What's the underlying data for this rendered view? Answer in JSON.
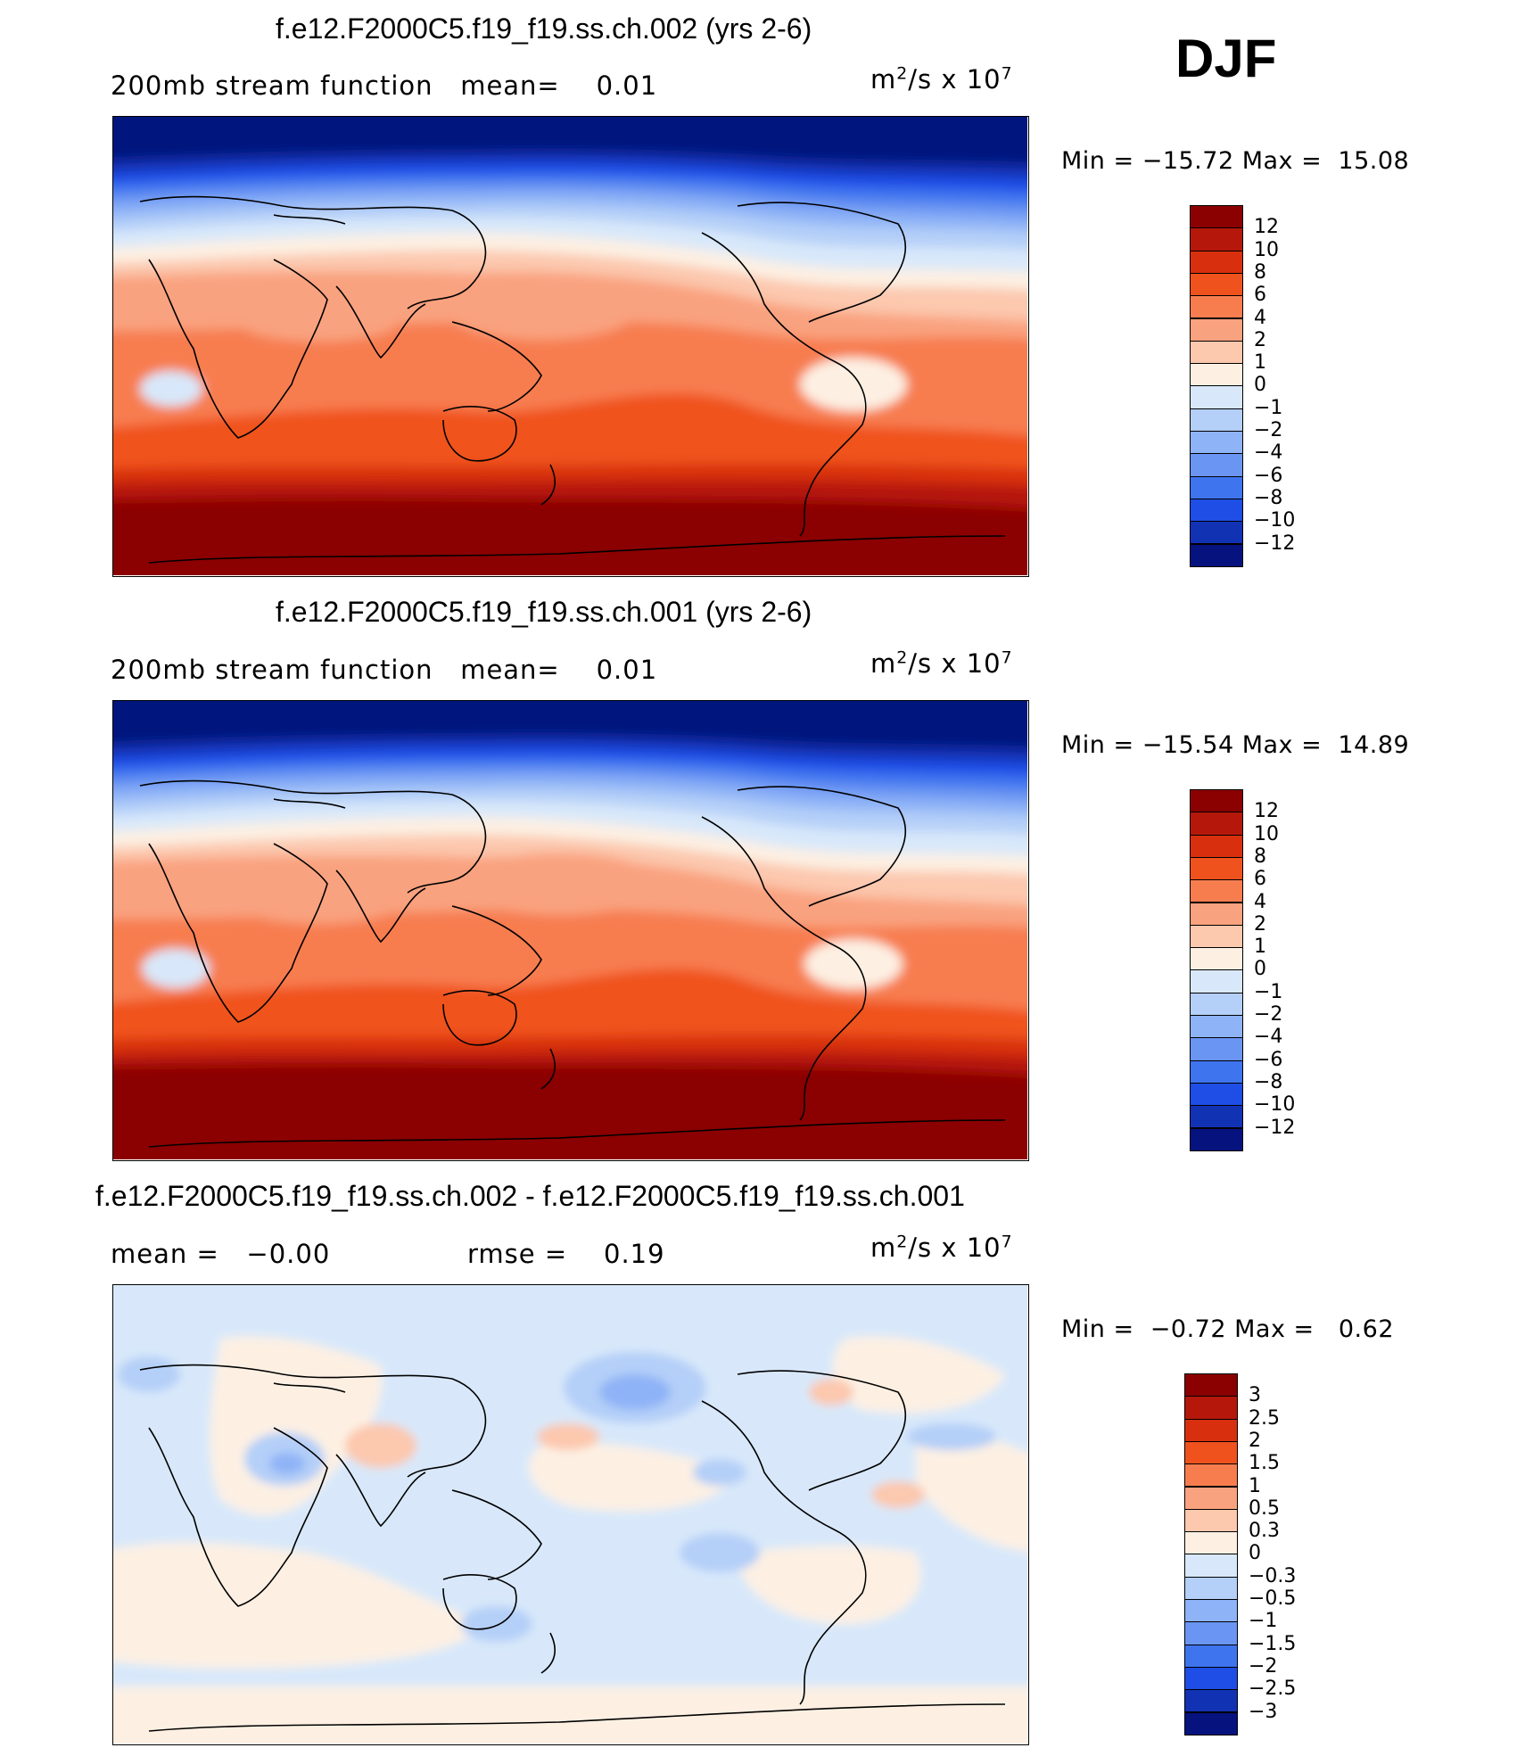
{
  "header": {
    "season": "DJF"
  },
  "panels": [
    {
      "title": "f.e12.F2000C5.f19_f19.ss.ch.002 (yrs 2-6)",
      "left_text": "200mb stream function   mean=    0.01",
      "units_base": "m",
      "units_mid": "/s x 10",
      "units_exp1": "2",
      "units_exp2": "7",
      "minmax": "Min = −15.72 Max =  15.08",
      "colorbar": {
        "levels": [
          "12",
          "10",
          "8",
          "6",
          "4",
          "2",
          "1",
          "0",
          "−1",
          "−2",
          "−4",
          "−6",
          "−8",
          "−10",
          "−12"
        ],
        "colors": [
          "#8b0000",
          "#b5180b",
          "#d8300f",
          "#f0521e",
          "#f77d4f",
          "#f9a27f",
          "#fcc8ae",
          "#fdf0e3",
          "#d8e8fa",
          "#b4cff8",
          "#8fb3f7",
          "#6a95f3",
          "#3f74ef",
          "#1f4ee6",
          "#1232b4",
          "#06127e"
        ]
      }
    },
    {
      "title": "f.e12.F2000C5.f19_f19.ss.ch.001 (yrs 2-6)",
      "left_text": "200mb stream function   mean=    0.01",
      "units_base": "m",
      "units_mid": "/s x 10",
      "units_exp1": "2",
      "units_exp2": "7",
      "minmax": "Min = −15.54 Max =  14.89",
      "colorbar": {
        "levels": [
          "12",
          "10",
          "8",
          "6",
          "4",
          "2",
          "1",
          "0",
          "−1",
          "−2",
          "−4",
          "−6",
          "−8",
          "−10",
          "−12"
        ],
        "colors": [
          "#8b0000",
          "#b5180b",
          "#d8300f",
          "#f0521e",
          "#f77d4f",
          "#f9a27f",
          "#fcc8ae",
          "#fdf0e3",
          "#d8e8fa",
          "#b4cff8",
          "#8fb3f7",
          "#6a95f3",
          "#3f74ef",
          "#1f4ee6",
          "#1232b4",
          "#06127e"
        ]
      }
    },
    {
      "title": "f.e12.F2000C5.f19_f19.ss.ch.002 - f.e12.F2000C5.f19_f19.ss.ch.001",
      "left_text": "mean =   −0.00",
      "mid_text": "rmse =    0.19",
      "units_base": "m",
      "units_mid": "/s x 10",
      "units_exp1": "2",
      "units_exp2": "7",
      "minmax": "Min =  −0.72 Max =   0.62",
      "colorbar": {
        "levels": [
          "3",
          "2.5",
          "2",
          "1.5",
          "1",
          "0.5",
          "0.3",
          "0",
          "−0.3",
          "−0.5",
          "−1",
          "−1.5",
          "−2",
          "−2.5",
          "−3"
        ],
        "colors": [
          "#8b0000",
          "#b5180b",
          "#d8300f",
          "#f0521e",
          "#f77d4f",
          "#f9a27f",
          "#fcc8ae",
          "#fdf0e3",
          "#d8e8fa",
          "#b4cff8",
          "#8fb3f7",
          "#6a95f3",
          "#3f74ef",
          "#1f4ee6",
          "#1232b4",
          "#06127e"
        ]
      }
    }
  ]
}
